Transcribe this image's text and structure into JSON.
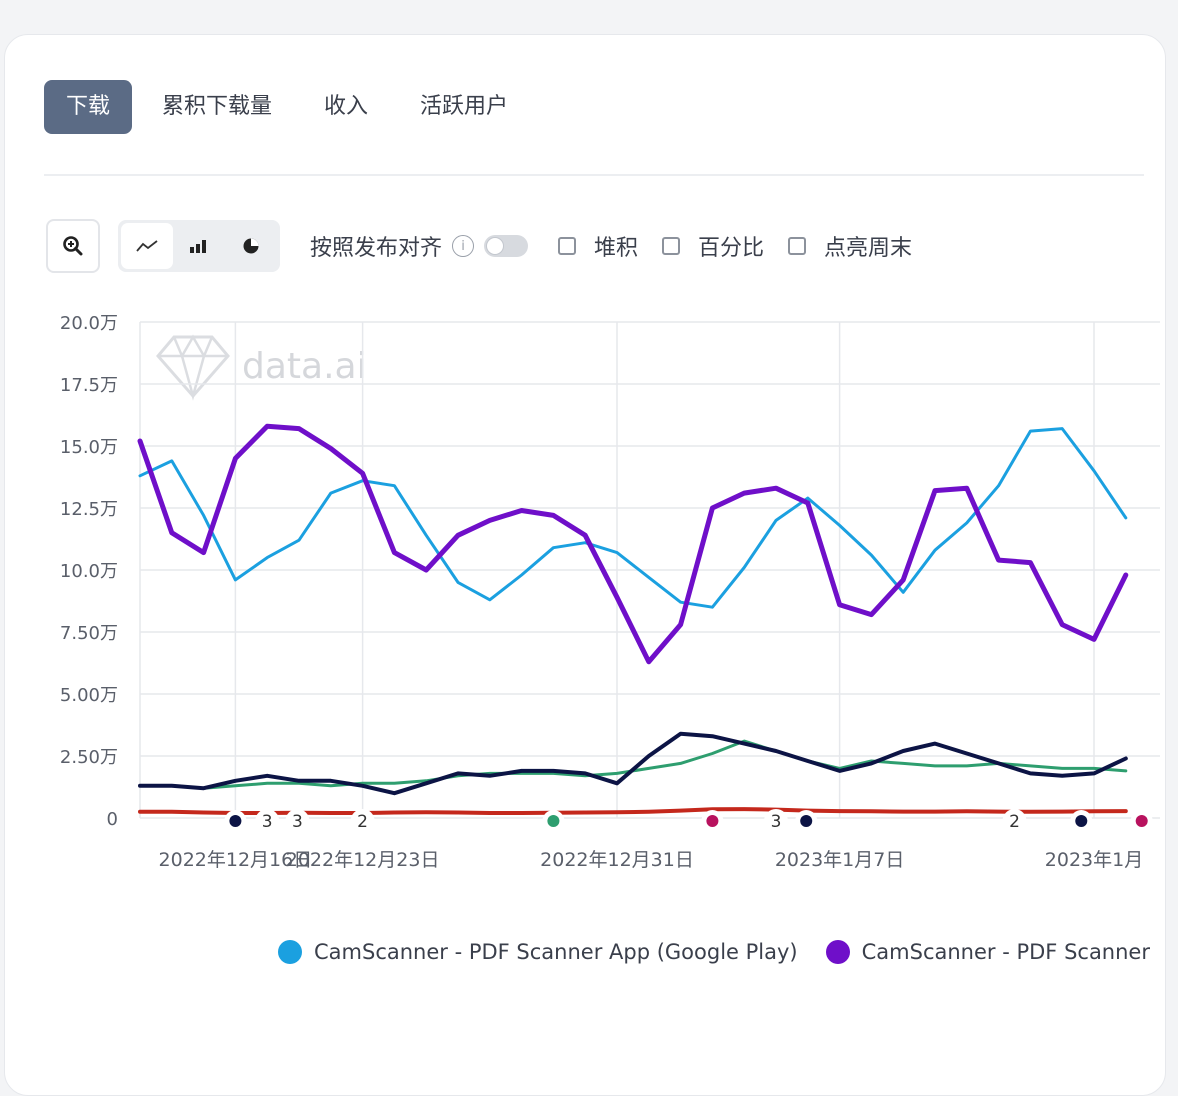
{
  "tabs": [
    "下载",
    "累积下载量",
    "收入",
    "活跃用户"
  ],
  "toolbar": {
    "align_label": "按照发布对齐",
    "stack_label": "堆积",
    "percent_label": "百分比",
    "weekend_label": "点亮周末"
  },
  "watermark_text": "data.ai",
  "colors": {
    "google_play": "#1ba0e0",
    "ios": "#6f0fc9",
    "navy": "#0c1445",
    "green": "#2e9e6f",
    "red": "#c4281c",
    "pink": "#b8125e"
  },
  "chart_data": {
    "type": "line",
    "yticks": [
      "20.0万",
      "17.5万",
      "15.0万",
      "12.5万",
      "10.0万",
      "7.50万",
      "5.00万",
      "2.50万",
      "0"
    ],
    "ylim": [
      0,
      200000
    ],
    "xticks": [
      {
        "label": "2022年12月16日",
        "index": 3
      },
      {
        "label": "2022年12月23日",
        "index": 7
      },
      {
        "label": "2022年12月31日",
        "index": 15
      },
      {
        "label": "2023年1月7日",
        "index": 22
      },
      {
        "label": "2023年1月",
        "index": 30
      }
    ],
    "series": [
      {
        "name": "CamScanner - PDF Scanner App (Google Play)",
        "color": "#1ba0e0",
        "values": [
          138000,
          144000,
          122000,
          96000,
          105000,
          112000,
          131000,
          136000,
          134000,
          114000,
          95000,
          88000,
          98000,
          109000,
          111000,
          107000,
          97000,
          87000,
          85000,
          101000,
          120000,
          129000,
          118000,
          106000,
          91000,
          108000,
          119000,
          134000,
          156000,
          157000,
          140000,
          121000
        ]
      },
      {
        "name": "CamScanner - PDF Scanner",
        "color": "#6f0fc9",
        "values": [
          152000,
          115000,
          107000,
          145000,
          158000,
          157000,
          149000,
          139000,
          107000,
          100000,
          114000,
          120000,
          124000,
          122000,
          114000,
          89000,
          63000,
          78000,
          125000,
          131000,
          133000,
          127000,
          86000,
          82000,
          96000,
          132000,
          133000,
          104000,
          103000,
          78000,
          72000,
          98000
        ]
      },
      {
        "color": "#0c1445",
        "values": [
          13000,
          13000,
          12000,
          15000,
          17000,
          15000,
          15000,
          13000,
          10000,
          14000,
          18000,
          17000,
          19000,
          19000,
          18000,
          14000,
          25000,
          34000,
          33000,
          30000,
          27000,
          23000,
          19000,
          22000,
          27000,
          30000,
          26000,
          22000,
          18000,
          17000,
          18000,
          24000
        ]
      },
      {
        "color": "#2e9e6f",
        "values": [
          13000,
          13000,
          12000,
          13000,
          14000,
          14000,
          13000,
          14000,
          14000,
          15000,
          17000,
          18000,
          18000,
          18000,
          17000,
          18000,
          20000,
          22000,
          26000,
          31000,
          27000,
          23000,
          20000,
          23000,
          22000,
          21000,
          21000,
          22000,
          21000,
          20000,
          20000,
          19000
        ]
      },
      {
        "color": "#c4281c",
        "values": [
          2500,
          2500,
          2200,
          2000,
          2000,
          2100,
          2000,
          2000,
          2200,
          2300,
          2200,
          2000,
          2000,
          2100,
          2200,
          2300,
          2500,
          3000,
          3500,
          3600,
          3400,
          3000,
          2800,
          2700,
          2600,
          2600,
          2700,
          2600,
          2500,
          2600,
          2700,
          2800
        ]
      }
    ],
    "markers": [
      {
        "index": 3.0,
        "type": "dot",
        "color": "#0c1445"
      },
      {
        "index": 4.0,
        "type": "num",
        "label": "3"
      },
      {
        "index": 4.95,
        "type": "num",
        "label": "3"
      },
      {
        "index": 7.0,
        "type": "num",
        "label": "2"
      },
      {
        "index": 13.0,
        "type": "dot",
        "color": "#2e9e6f"
      },
      {
        "index": 18.0,
        "type": "dot",
        "color": "#b8125e"
      },
      {
        "index": 20.0,
        "type": "num",
        "label": "3"
      },
      {
        "index": 20.95,
        "type": "dot",
        "color": "#0c1445"
      },
      {
        "index": 27.5,
        "type": "num",
        "label": "2"
      },
      {
        "index": 29.6,
        "type": "dot",
        "color": "#0c1445"
      },
      {
        "index": 31.5,
        "type": "dot",
        "color": "#b8125e"
      }
    ]
  },
  "legend": [
    {
      "label": "CamScanner - PDF Scanner App (Google Play)",
      "color": "#1ba0e0"
    },
    {
      "label": "CamScanner - PDF Scanner",
      "color": "#6f0fc9"
    }
  ]
}
